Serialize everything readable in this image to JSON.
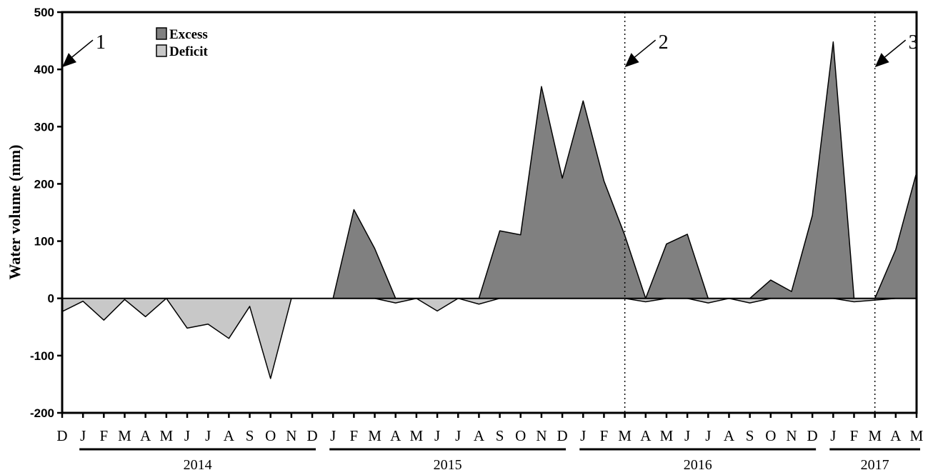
{
  "chart_data": {
    "type": "area",
    "ylabel": "Water volume (mm)",
    "ylim": [
      -200,
      500
    ],
    "yticks": [
      -200,
      -100,
      0,
      100,
      200,
      300,
      400,
      500
    ],
    "x": [
      "D",
      "J",
      "F",
      "M",
      "A",
      "M",
      "J",
      "J",
      "A",
      "S",
      "O",
      "N",
      "D",
      "J",
      "F",
      "M",
      "A",
      "M",
      "J",
      "J",
      "A",
      "S",
      "O",
      "N",
      "D",
      "J",
      "F",
      "M",
      "A",
      "M",
      "J",
      "J",
      "A",
      "S",
      "O",
      "N",
      "D",
      "J",
      "F",
      "M",
      "A",
      "M"
    ],
    "years": [
      {
        "label": "2014",
        "from": 1,
        "to": 12
      },
      {
        "label": "2015",
        "from": 13,
        "to": 24
      },
      {
        "label": "2016",
        "from": 25,
        "to": 36
      },
      {
        "label": "2017",
        "from": 37,
        "to": 41
      }
    ],
    "series": [
      {
        "name": "Excess",
        "color": "#808080",
        "values": [
          0,
          0,
          0,
          0,
          0,
          0,
          0,
          0,
          0,
          0,
          0,
          0,
          0,
          0,
          155,
          87,
          0,
          0,
          0,
          0,
          0,
          118,
          111,
          370,
          210,
          345,
          205,
          110,
          0,
          95,
          112,
          0,
          0,
          0,
          32,
          12,
          145,
          448,
          0,
          0,
          85,
          220
        ]
      },
      {
        "name": "Deficit",
        "color": "#c8c8c8",
        "values": [
          -23,
          -5,
          -38,
          -2,
          -32,
          0,
          -52,
          -45,
          -70,
          -14,
          -140,
          0,
          0,
          0,
          0,
          0,
          -8,
          0,
          -22,
          0,
          -10,
          0,
          0,
          0,
          0,
          0,
          0,
          0,
          -6,
          0,
          0,
          -8,
          0,
          -8,
          0,
          0,
          0,
          0,
          -6,
          -3,
          0,
          0
        ]
      }
    ],
    "markers": [
      {
        "label": "1",
        "x_index": 0,
        "y": 400,
        "dotted_line": false
      },
      {
        "label": "2",
        "x_index": 27,
        "y": 400,
        "dotted_line": true
      },
      {
        "label": "3",
        "x_index": 39,
        "y": 400,
        "dotted_line": true
      }
    ],
    "legend_position": "top-left",
    "grid": false
  }
}
